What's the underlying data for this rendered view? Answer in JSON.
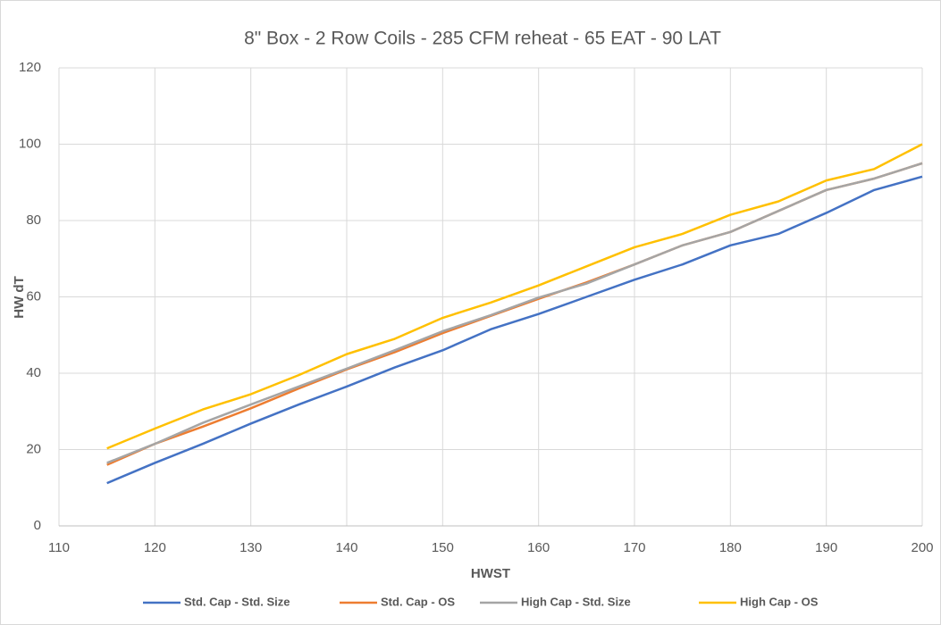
{
  "chart_data": {
    "type": "line",
    "title": "8\" Box - 2 Row Coils - 285 CFM reheat - 65 EAT - 90 LAT",
    "x_label": "HWST",
    "y_label": "HW dT",
    "x": [
      115,
      120,
      125,
      130,
      135,
      140,
      145,
      150,
      155,
      160,
      165,
      170,
      175,
      180,
      185,
      190,
      195,
      200
    ],
    "series": [
      {
        "name": "Std. Cap - Std. Size",
        "color": "#4472c4",
        "values": [
          11.2,
          16.5,
          21.5,
          26.8,
          31.8,
          36.5,
          41.5,
          46,
          51.5,
          55.5,
          60,
          64.5,
          68.5,
          73.5,
          76.5,
          82,
          88,
          91.5
        ]
      },
      {
        "name": "Std. Cap - OS",
        "color": "#ed7d31",
        "values": [
          16,
          21.5,
          26,
          30.8,
          36,
          41,
          45.5,
          50.5,
          55,
          59.5,
          63.8,
          68.5,
          73.5,
          77,
          82.5,
          88,
          91,
          95
        ]
      },
      {
        "name": "High Cap - Std. Size",
        "color": "#a5a5a5",
        "values": [
          16.5,
          21.5,
          27,
          31.8,
          36.5,
          41.2,
          46,
          51,
          55.2,
          59.8,
          63.5,
          68.5,
          73.5,
          77,
          82.5,
          88,
          91,
          95
        ]
      },
      {
        "name": "High Cap - OS",
        "color": "#ffc000",
        "values": [
          20.3,
          25.5,
          30.5,
          34.5,
          39.5,
          45,
          49,
          54.5,
          58.5,
          63,
          68,
          73,
          76.5,
          81.5,
          85,
          90.5,
          93.5,
          100
        ]
      }
    ],
    "xlim": [
      110,
      200
    ],
    "xticks": [
      110,
      120,
      130,
      140,
      150,
      160,
      170,
      180,
      190,
      200
    ],
    "ylim": [
      0,
      120
    ],
    "yticks": [
      0,
      20,
      40,
      60,
      80,
      100,
      120
    ],
    "grid": true,
    "legend": "bottom"
  }
}
